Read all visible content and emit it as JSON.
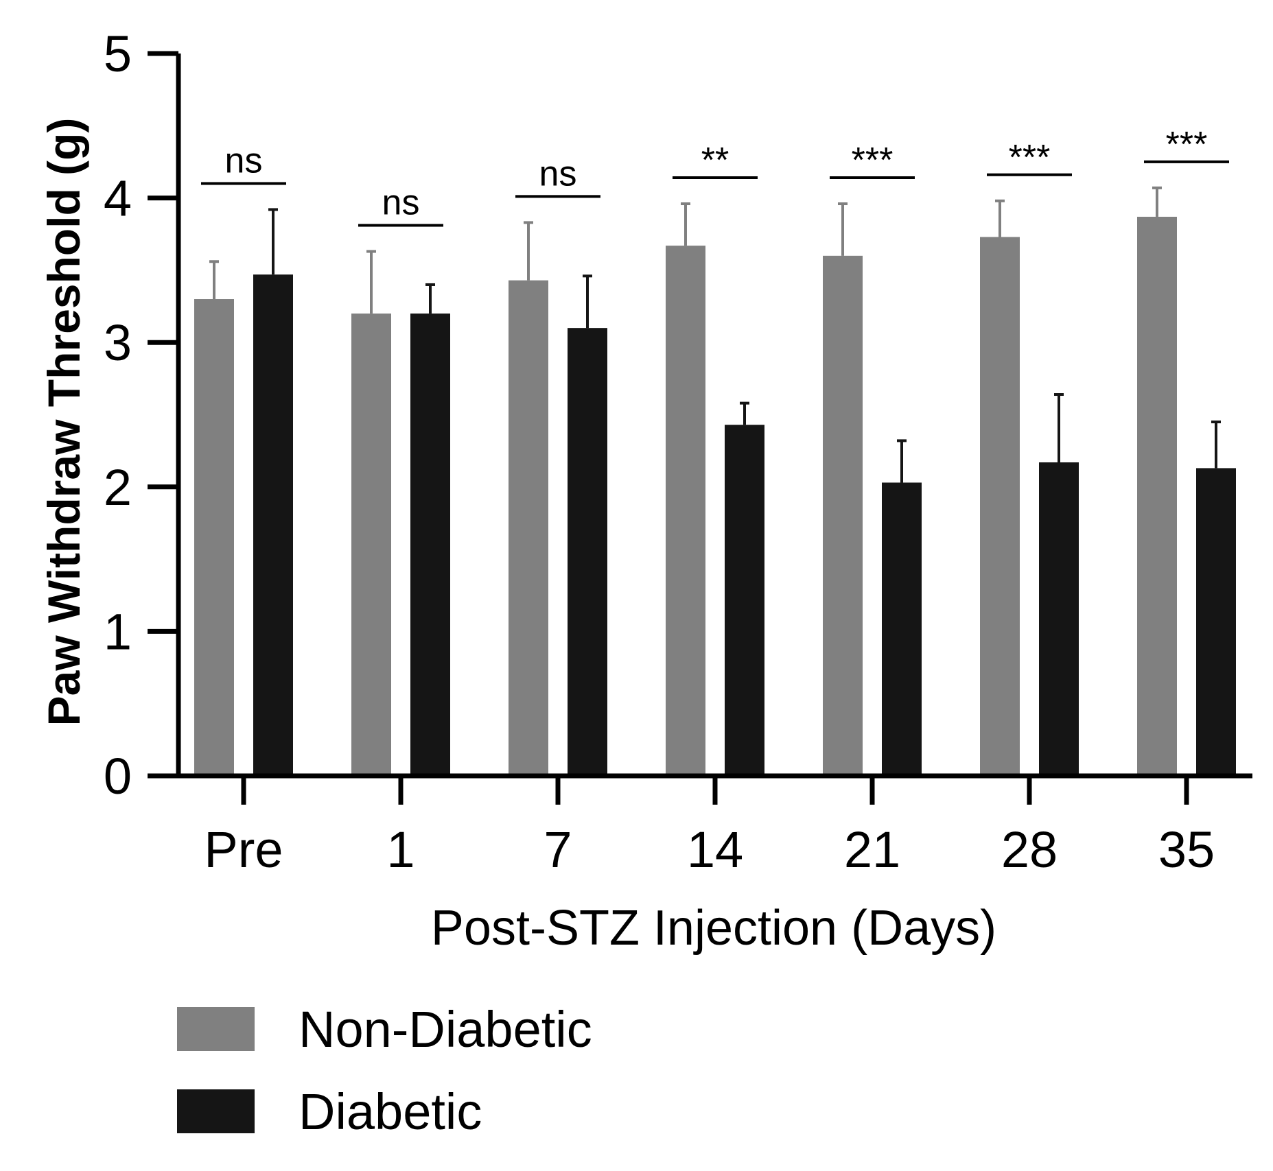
{
  "chart_data": {
    "type": "bar",
    "xlabel": "Post-STZ Injection (Days)",
    "ylabel": "Paw Withdraw Threshold (g)",
    "ylim": [
      0,
      5
    ],
    "yticks": [
      0,
      1,
      2,
      3,
      4,
      5
    ],
    "categories": [
      "Pre",
      "1",
      "7",
      "14",
      "21",
      "28",
      "35"
    ],
    "series": [
      {
        "name": "Non-Diabetic",
        "color": "#808080",
        "values": [
          3.3,
          3.2,
          3.43,
          3.67,
          3.6,
          3.73,
          3.87
        ],
        "errors": [
          0.26,
          0.43,
          0.4,
          0.29,
          0.36,
          0.25,
          0.2
        ]
      },
      {
        "name": "Diabetic",
        "color": "#151515",
        "values": [
          3.47,
          3.2,
          3.1,
          2.43,
          2.03,
          2.17,
          2.13
        ],
        "errors": [
          0.45,
          0.2,
          0.36,
          0.15,
          0.29,
          0.47,
          0.32
        ]
      }
    ],
    "significance": [
      "ns",
      "ns",
      "ns",
      "**",
      "***",
      "***",
      "***"
    ],
    "legend_position": "bottom-left",
    "grid": false
  }
}
